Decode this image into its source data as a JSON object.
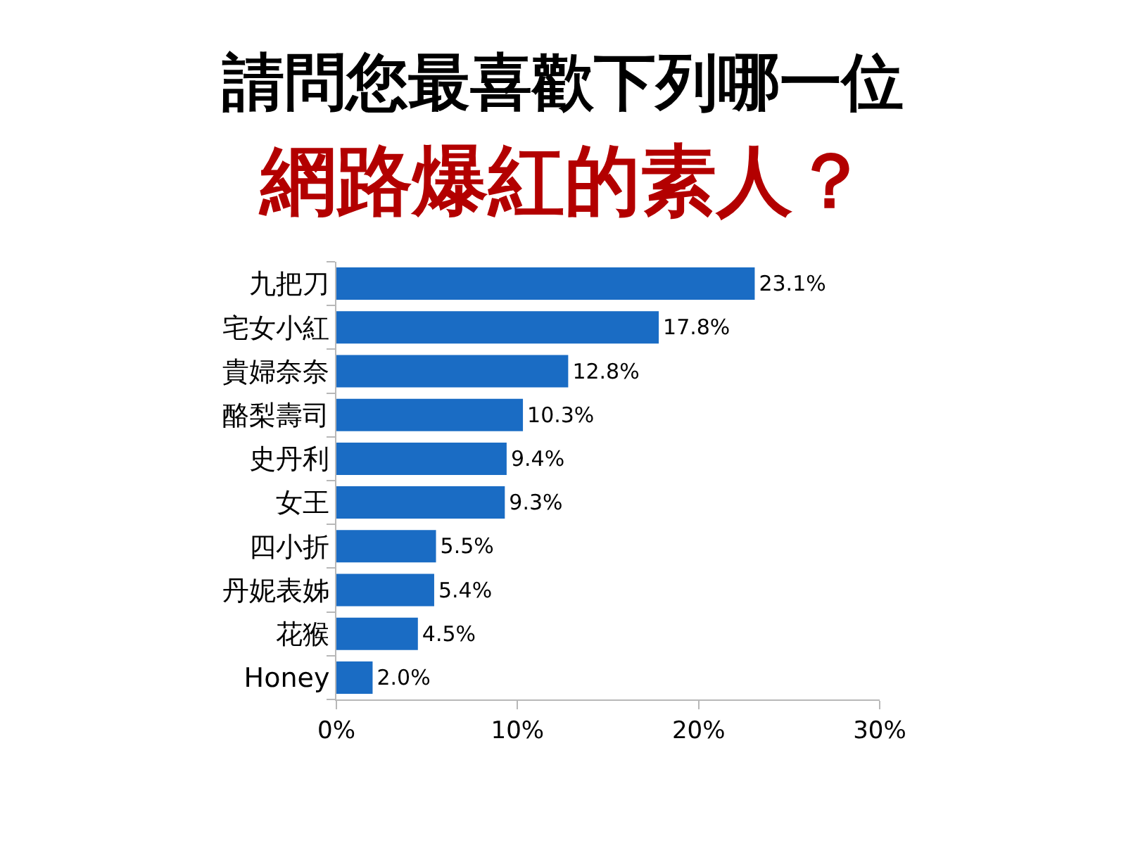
{
  "chart_data": {
    "type": "bar",
    "orientation": "horizontal",
    "title": "請問您最喜歡下列哪一位",
    "subtitle": "網路爆紅的素人？",
    "categories": [
      "九把刀",
      "宅女小紅",
      "貴婦奈奈",
      "酪梨壽司",
      "史丹利",
      "女王",
      "四小折",
      "丹妮表姊",
      "花猴",
      "Honey"
    ],
    "values": [
      23.1,
      17.8,
      12.8,
      10.3,
      9.4,
      9.3,
      5.5,
      5.4,
      4.5,
      2.0
    ],
    "value_labels": [
      "23.1%",
      "17.8%",
      "12.8%",
      "10.3%",
      "9.4%",
      "9.3%",
      "5.5%",
      "5.4%",
      "4.5%",
      "2.0%"
    ],
    "color": "#1a6cc4",
    "xlim": [
      0,
      30
    ],
    "xticks": [
      {
        "value": 0,
        "label": "0%"
      },
      {
        "value": 10,
        "label": "10%"
      },
      {
        "value": 20,
        "label": "20%"
      },
      {
        "value": 30,
        "label": "30%"
      }
    ],
    "grid": false
  }
}
